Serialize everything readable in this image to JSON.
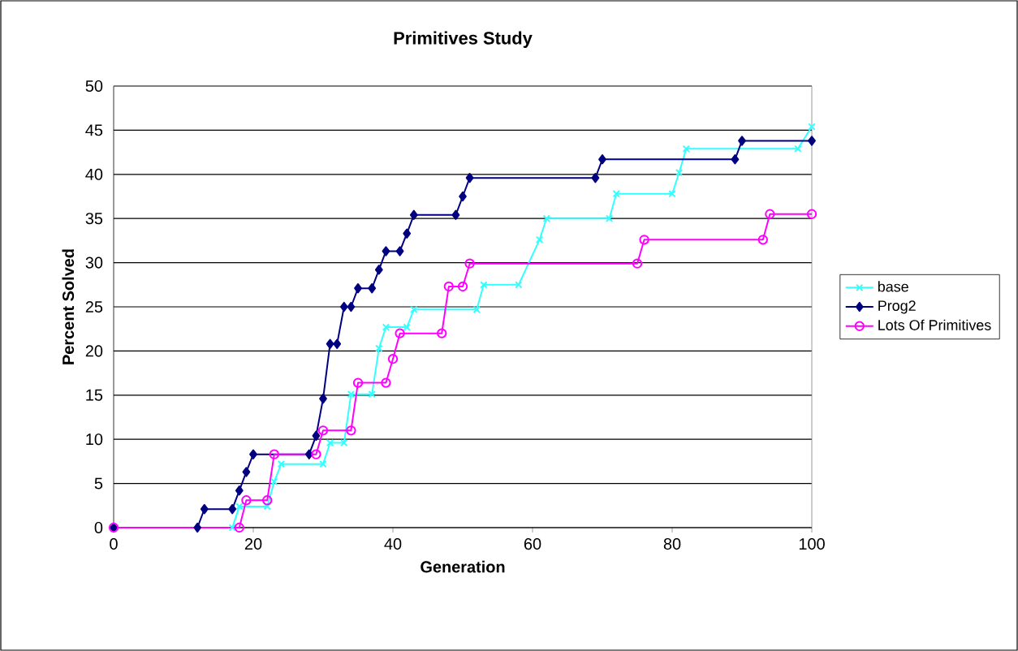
{
  "chart_data": {
    "type": "line",
    "title": "Primitives Study",
    "xlabel": "Generation",
    "ylabel": "Percent Solved",
    "xlim": [
      0,
      100
    ],
    "xticks": [
      0,
      20,
      40,
      60,
      80,
      100
    ],
    "ylim": [
      0,
      50
    ],
    "yticks": [
      0,
      5,
      10,
      15,
      20,
      25,
      30,
      35,
      40,
      45,
      50
    ],
    "grid": "y",
    "legend": "right",
    "series": [
      {
        "name": "base",
        "color": "#33ffff",
        "marker": "cross",
        "x": [
          0,
          17,
          18,
          22,
          23,
          24,
          30,
          31,
          33,
          34,
          37,
          38,
          39,
          42,
          43,
          52,
          53,
          58,
          61,
          62,
          71,
          72,
          80,
          81,
          82,
          98,
          100
        ],
        "values": [
          0,
          0,
          2.4,
          2.4,
          5.2,
          7.2,
          7.2,
          9.6,
          9.6,
          15.1,
          15.1,
          20.3,
          22.7,
          22.7,
          24.7,
          24.7,
          27.5,
          27.5,
          32.6,
          35,
          35,
          37.8,
          37.8,
          40.2,
          42.9,
          42.9,
          45.4
        ]
      },
      {
        "name": "Prog2",
        "color": "#000080",
        "marker": "diamond",
        "x": [
          0,
          12,
          13,
          17,
          18,
          19,
          20,
          28,
          29,
          30,
          31,
          32,
          33,
          34,
          35,
          37,
          38,
          39,
          41,
          42,
          43,
          49,
          50,
          51,
          69,
          70,
          89,
          90,
          100
        ],
        "values": [
          0,
          0,
          2.1,
          2.1,
          4.2,
          6.3,
          8.3,
          8.3,
          10.4,
          14.6,
          20.8,
          20.8,
          25,
          25,
          27.1,
          27.1,
          29.2,
          31.3,
          31.3,
          33.3,
          35.4,
          35.4,
          37.5,
          39.6,
          39.6,
          41.7,
          41.7,
          43.8,
          43.8
        ]
      },
      {
        "name": "Lots Of Primitives",
        "color": "#ff00ff",
        "marker": "circle",
        "x": [
          0,
          18,
          19,
          22,
          23,
          29,
          30,
          34,
          35,
          39,
          40,
          41,
          47,
          48,
          50,
          51,
          75,
          76,
          93,
          94,
          100
        ],
        "values": [
          0,
          0,
          3.1,
          3.1,
          8.3,
          8.3,
          11,
          11,
          16.4,
          16.4,
          19.1,
          22,
          22,
          27.3,
          27.3,
          29.9,
          29.9,
          32.6,
          32.6,
          35.5,
          35.5
        ]
      }
    ]
  }
}
